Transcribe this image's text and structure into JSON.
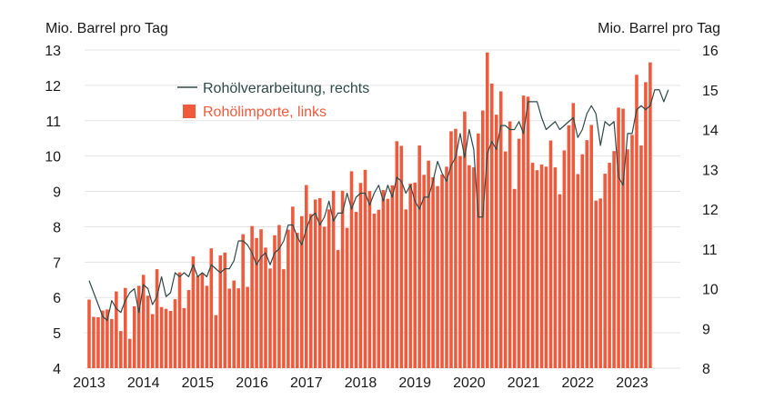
{
  "chart_data": {
    "type": "bar",
    "ylabel_left": "Mio. Barrel pro Tag",
    "ylabel_right": "Mio. Barrel pro Tag",
    "ylim_left": [
      4,
      13
    ],
    "ylim_right": [
      8,
      16
    ],
    "yticks_left": [
      "4",
      "5",
      "6",
      "7",
      "8",
      "9",
      "10",
      "11",
      "12",
      "13"
    ],
    "yticks_right": [
      "8",
      "9",
      "10",
      "11",
      "12",
      "13",
      "14",
      "15",
      "16"
    ],
    "xticks": [
      "2013",
      "2014",
      "2015",
      "2016",
      "2017",
      "2018",
      "2019",
      "2020",
      "2021",
      "2022",
      "2023"
    ],
    "start": "2013-01",
    "grid": true,
    "legend_position": "top-left",
    "series": [
      {
        "name": "Rohölverarbeitung, rechts",
        "type": "line",
        "axis": "right",
        "color": "#2f4a48",
        "values": [
          10.2,
          9.9,
          9.6,
          9.3,
          9.2,
          9.7,
          9.5,
          9.4,
          9.7,
          9.9,
          10.0,
          9.4,
          10.1,
          10.0,
          9.6,
          9.8,
          10.3,
          9.8,
          9.9,
          10.4,
          10.3,
          10.4,
          10.3,
          10.6,
          10.3,
          10.4,
          10.3,
          10.6,
          10.5,
          10.4,
          10.5,
          10.5,
          10.7,
          11.2,
          11.2,
          11.1,
          10.9,
          10.6,
          10.8,
          10.9,
          10.6,
          10.9,
          11.0,
          11.2,
          11.6,
          11.6,
          11.3,
          11.1,
          11.5,
          11.8,
          11.9,
          11.6,
          11.8,
          12.2,
          11.7,
          11.9,
          11.9,
          12.4,
          12.0,
          12.3,
          12.4,
          12.4,
          12.1,
          12.4,
          12.6,
          12.2,
          12.6,
          12.3,
          12.8,
          12.7,
          12.4,
          12.6,
          12.2,
          12.0,
          12.3,
          12.3,
          12.7,
          13.2,
          12.9,
          12.7,
          13.1,
          13.3,
          13.9,
          13.3,
          14.0,
          13.5,
          11.8,
          11.8,
          13.4,
          13.7,
          13.5,
          14.1,
          14.1,
          14.0,
          14.0,
          14.2,
          13.9,
          14.7,
          14.7,
          14.7,
          14.3,
          14.0,
          14.1,
          14.2,
          14.0,
          14.1,
          14.2,
          14.3,
          13.8,
          14.0,
          14.4,
          14.6,
          14.4,
          13.6,
          14.2,
          14.1,
          14.2,
          12.8,
          12.6,
          13.9,
          13.9,
          14.5,
          14.6,
          14.5,
          14.6,
          15.0,
          15.0,
          14.7,
          15.0
        ]
      },
      {
        "name": "Rohölimporte, links",
        "type": "bar",
        "axis": "left",
        "color": "#ef5a3c",
        "values": [
          5.94,
          5.45,
          5.44,
          5.63,
          5.66,
          5.39,
          6.17,
          5.05,
          6.27,
          4.83,
          5.75,
          6.33,
          6.64,
          6.05,
          5.53,
          6.8,
          5.73,
          5.68,
          5.62,
          5.95,
          6.71,
          5.7,
          6.21,
          7.16,
          6.61,
          6.68,
          6.33,
          7.39,
          5.5,
          7.19,
          7.27,
          6.25,
          6.48,
          6.26,
          7.79,
          6.3,
          8.02,
          7.68,
          7.93,
          7.41,
          6.82,
          7.76,
          8.05,
          6.8,
          7.92,
          8.57,
          7.83,
          8.3,
          9.18,
          8.36,
          8.77,
          8.81,
          8.0,
          8.49,
          9.02,
          7.34,
          9.02,
          7.97,
          9.57,
          8.42,
          9.24,
          9.61,
          9.01,
          8.37,
          8.48,
          9.04,
          8.79,
          9.17,
          10.42,
          10.29,
          8.49,
          9.22,
          9.25,
          10.3,
          9.47,
          9.87,
          9.4,
          9.15,
          9.48,
          9.7,
          10.7,
          10.77,
          10.0,
          11.26,
          9.74,
          9.68,
          10.64,
          11.29,
          12.93,
          12.05,
          11.17,
          11.83,
          10.13,
          10.98,
          9.07,
          10.49,
          11.71,
          11.68,
          9.81,
          9.6,
          9.76,
          9.7,
          10.44,
          9.68,
          8.92,
          10.16,
          10.87,
          11.5,
          9.49,
          10.05,
          10.45,
          10.88,
          8.74,
          8.8,
          9.5,
          9.81,
          10.14,
          11.37,
          11.34,
          10.19,
          10.6,
          12.3,
          10.3,
          12.09,
          12.65
        ]
      }
    ]
  }
}
